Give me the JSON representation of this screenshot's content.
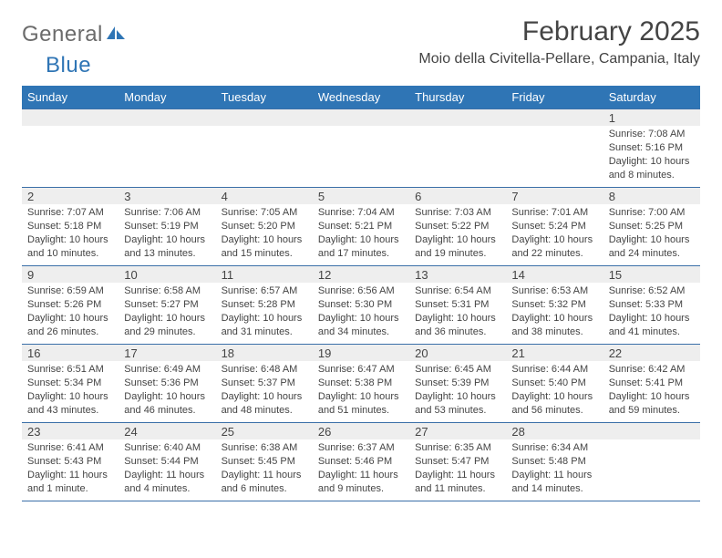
{
  "brand": {
    "text1": "General",
    "text2": "Blue"
  },
  "colors": {
    "header_bg": "#2f75b5",
    "header_fg": "#ffffff",
    "daynum_bg": "#eeeeee",
    "rule": "#3a6fa8",
    "brand_gray": "#6b6b6b",
    "brand_blue": "#2f75b5",
    "text": "#444444"
  },
  "title": "February 2025",
  "location": "Moio della Civitella-Pellare, Campania, Italy",
  "weekdays": [
    "Sunday",
    "Monday",
    "Tuesday",
    "Wednesday",
    "Thursday",
    "Friday",
    "Saturday"
  ],
  "weeks": [
    [
      {
        "n": "",
        "l1": "",
        "l2": "",
        "l3": "",
        "l4": "",
        "empty": true
      },
      {
        "n": "",
        "l1": "",
        "l2": "",
        "l3": "",
        "l4": "",
        "empty": true
      },
      {
        "n": "",
        "l1": "",
        "l2": "",
        "l3": "",
        "l4": "",
        "empty": true
      },
      {
        "n": "",
        "l1": "",
        "l2": "",
        "l3": "",
        "l4": "",
        "empty": true
      },
      {
        "n": "",
        "l1": "",
        "l2": "",
        "l3": "",
        "l4": "",
        "empty": true
      },
      {
        "n": "",
        "l1": "",
        "l2": "",
        "l3": "",
        "l4": "",
        "empty": true
      },
      {
        "n": "1",
        "l1": "Sunrise: 7:08 AM",
        "l2": "Sunset: 5:16 PM",
        "l3": "Daylight: 10 hours",
        "l4": "and 8 minutes."
      }
    ],
    [
      {
        "n": "2",
        "l1": "Sunrise: 7:07 AM",
        "l2": "Sunset: 5:18 PM",
        "l3": "Daylight: 10 hours",
        "l4": "and 10 minutes."
      },
      {
        "n": "3",
        "l1": "Sunrise: 7:06 AM",
        "l2": "Sunset: 5:19 PM",
        "l3": "Daylight: 10 hours",
        "l4": "and 13 minutes."
      },
      {
        "n": "4",
        "l1": "Sunrise: 7:05 AM",
        "l2": "Sunset: 5:20 PM",
        "l3": "Daylight: 10 hours",
        "l4": "and 15 minutes."
      },
      {
        "n": "5",
        "l1": "Sunrise: 7:04 AM",
        "l2": "Sunset: 5:21 PM",
        "l3": "Daylight: 10 hours",
        "l4": "and 17 minutes."
      },
      {
        "n": "6",
        "l1": "Sunrise: 7:03 AM",
        "l2": "Sunset: 5:22 PM",
        "l3": "Daylight: 10 hours",
        "l4": "and 19 minutes."
      },
      {
        "n": "7",
        "l1": "Sunrise: 7:01 AM",
        "l2": "Sunset: 5:24 PM",
        "l3": "Daylight: 10 hours",
        "l4": "and 22 minutes."
      },
      {
        "n": "8",
        "l1": "Sunrise: 7:00 AM",
        "l2": "Sunset: 5:25 PM",
        "l3": "Daylight: 10 hours",
        "l4": "and 24 minutes."
      }
    ],
    [
      {
        "n": "9",
        "l1": "Sunrise: 6:59 AM",
        "l2": "Sunset: 5:26 PM",
        "l3": "Daylight: 10 hours",
        "l4": "and 26 minutes."
      },
      {
        "n": "10",
        "l1": "Sunrise: 6:58 AM",
        "l2": "Sunset: 5:27 PM",
        "l3": "Daylight: 10 hours",
        "l4": "and 29 minutes."
      },
      {
        "n": "11",
        "l1": "Sunrise: 6:57 AM",
        "l2": "Sunset: 5:28 PM",
        "l3": "Daylight: 10 hours",
        "l4": "and 31 minutes."
      },
      {
        "n": "12",
        "l1": "Sunrise: 6:56 AM",
        "l2": "Sunset: 5:30 PM",
        "l3": "Daylight: 10 hours",
        "l4": "and 34 minutes."
      },
      {
        "n": "13",
        "l1": "Sunrise: 6:54 AM",
        "l2": "Sunset: 5:31 PM",
        "l3": "Daylight: 10 hours",
        "l4": "and 36 minutes."
      },
      {
        "n": "14",
        "l1": "Sunrise: 6:53 AM",
        "l2": "Sunset: 5:32 PM",
        "l3": "Daylight: 10 hours",
        "l4": "and 38 minutes."
      },
      {
        "n": "15",
        "l1": "Sunrise: 6:52 AM",
        "l2": "Sunset: 5:33 PM",
        "l3": "Daylight: 10 hours",
        "l4": "and 41 minutes."
      }
    ],
    [
      {
        "n": "16",
        "l1": "Sunrise: 6:51 AM",
        "l2": "Sunset: 5:34 PM",
        "l3": "Daylight: 10 hours",
        "l4": "and 43 minutes."
      },
      {
        "n": "17",
        "l1": "Sunrise: 6:49 AM",
        "l2": "Sunset: 5:36 PM",
        "l3": "Daylight: 10 hours",
        "l4": "and 46 minutes."
      },
      {
        "n": "18",
        "l1": "Sunrise: 6:48 AM",
        "l2": "Sunset: 5:37 PM",
        "l3": "Daylight: 10 hours",
        "l4": "and 48 minutes."
      },
      {
        "n": "19",
        "l1": "Sunrise: 6:47 AM",
        "l2": "Sunset: 5:38 PM",
        "l3": "Daylight: 10 hours",
        "l4": "and 51 minutes."
      },
      {
        "n": "20",
        "l1": "Sunrise: 6:45 AM",
        "l2": "Sunset: 5:39 PM",
        "l3": "Daylight: 10 hours",
        "l4": "and 53 minutes."
      },
      {
        "n": "21",
        "l1": "Sunrise: 6:44 AM",
        "l2": "Sunset: 5:40 PM",
        "l3": "Daylight: 10 hours",
        "l4": "and 56 minutes."
      },
      {
        "n": "22",
        "l1": "Sunrise: 6:42 AM",
        "l2": "Sunset: 5:41 PM",
        "l3": "Daylight: 10 hours",
        "l4": "and 59 minutes."
      }
    ],
    [
      {
        "n": "23",
        "l1": "Sunrise: 6:41 AM",
        "l2": "Sunset: 5:43 PM",
        "l3": "Daylight: 11 hours",
        "l4": "and 1 minute."
      },
      {
        "n": "24",
        "l1": "Sunrise: 6:40 AM",
        "l2": "Sunset: 5:44 PM",
        "l3": "Daylight: 11 hours",
        "l4": "and 4 minutes."
      },
      {
        "n": "25",
        "l1": "Sunrise: 6:38 AM",
        "l2": "Sunset: 5:45 PM",
        "l3": "Daylight: 11 hours",
        "l4": "and 6 minutes."
      },
      {
        "n": "26",
        "l1": "Sunrise: 6:37 AM",
        "l2": "Sunset: 5:46 PM",
        "l3": "Daylight: 11 hours",
        "l4": "and 9 minutes."
      },
      {
        "n": "27",
        "l1": "Sunrise: 6:35 AM",
        "l2": "Sunset: 5:47 PM",
        "l3": "Daylight: 11 hours",
        "l4": "and 11 minutes."
      },
      {
        "n": "28",
        "l1": "Sunrise: 6:34 AM",
        "l2": "Sunset: 5:48 PM",
        "l3": "Daylight: 11 hours",
        "l4": "and 14 minutes."
      },
      {
        "n": "",
        "l1": "",
        "l2": "",
        "l3": "",
        "l4": "",
        "empty": true
      }
    ]
  ]
}
